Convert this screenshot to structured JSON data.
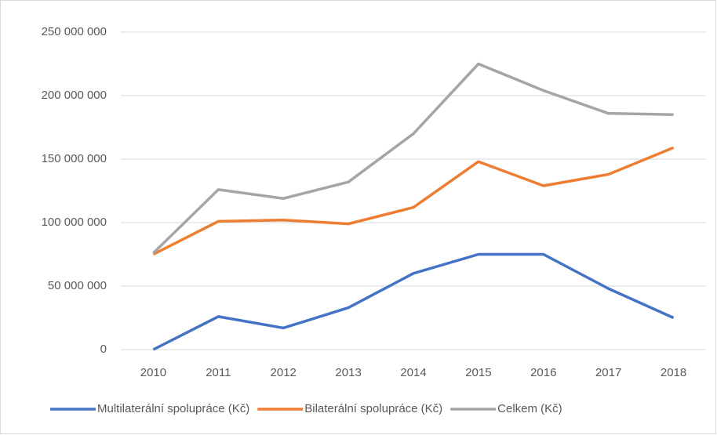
{
  "chart_data": {
    "type": "line",
    "categories": [
      "2010",
      "2011",
      "2012",
      "2013",
      "2014",
      "2015",
      "2016",
      "2017",
      "2018"
    ],
    "series": [
      {
        "name": "Multilaterální spolupráce (Kč)",
        "color": "#4472c4",
        "values": [
          0,
          26000000,
          17000000,
          33000000,
          60000000,
          75000000,
          75000000,
          48000000,
          25000000
        ]
      },
      {
        "name": "Bilaterální spolupráce (Kč)",
        "color": "#ed7d31",
        "values": [
          75000000,
          101000000,
          102000000,
          99000000,
          112000000,
          148000000,
          129000000,
          138000000,
          159000000
        ]
      },
      {
        "name": "Celkem (Kč)",
        "color": "#a5a5a5",
        "values": [
          76000000,
          126000000,
          119000000,
          132000000,
          170000000,
          225000000,
          204000000,
          186000000,
          185000000
        ]
      }
    ],
    "ylim": [
      0,
      250000000
    ],
    "yticks": [
      0,
      {
        "value": 50000000,
        "label": "50 000 000"
      },
      {
        "value": 100000000,
        "label": "100 000 000"
      },
      {
        "value": 150000000,
        "label": "150 000 000"
      },
      {
        "value": 200000000,
        "label": "200 000 000"
      },
      {
        "value": 250000000,
        "label": "250 000 000"
      }
    ],
    "grid": true,
    "legend": "bottom"
  }
}
